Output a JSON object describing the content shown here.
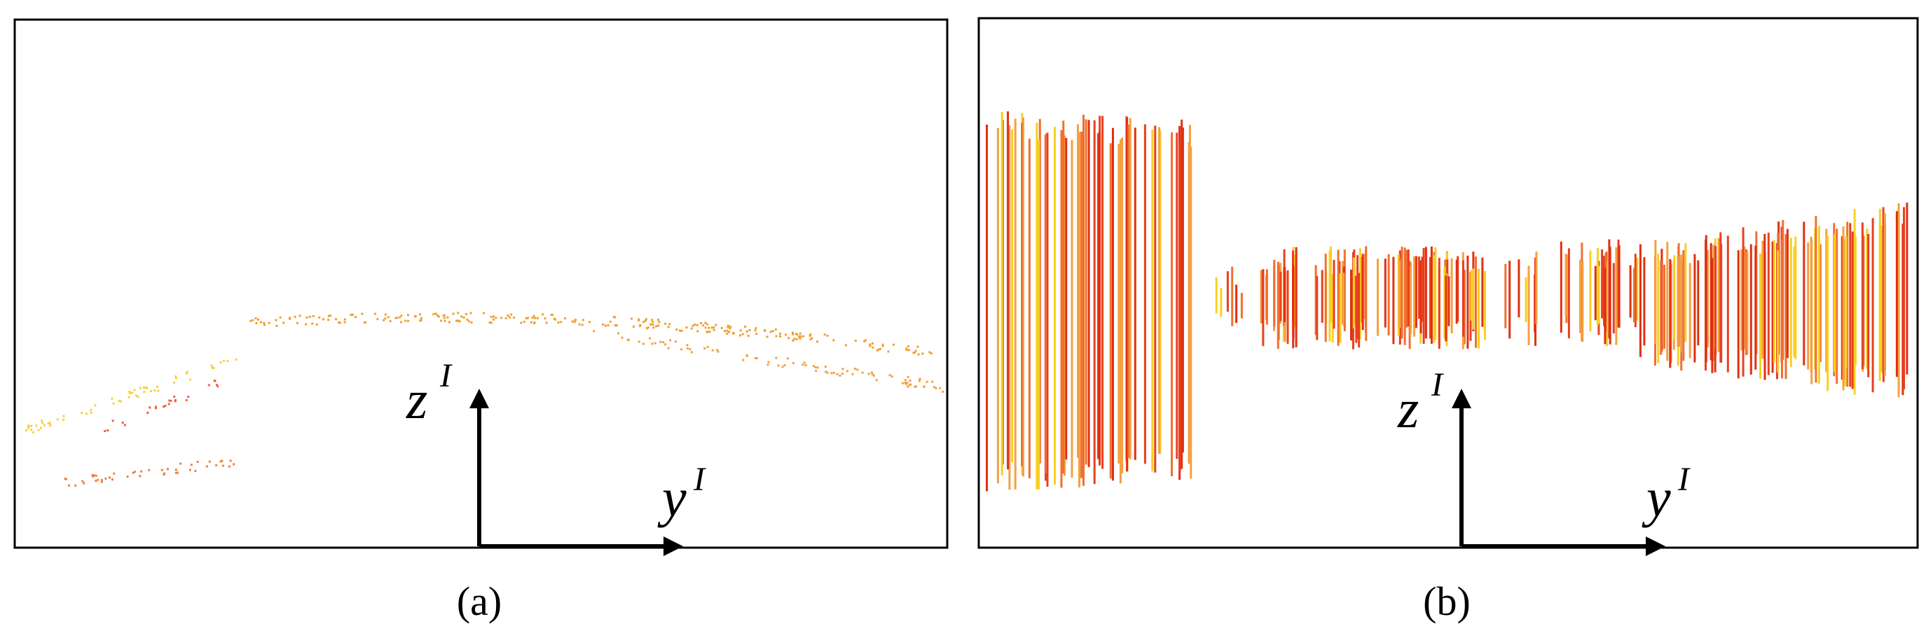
{
  "panels": [
    {
      "caption": "(a)",
      "vertical_axis": "z",
      "vertical_axis_sup": "I",
      "horizontal_axis": "y",
      "horizontal_axis_sup": "I"
    },
    {
      "caption": "(b)",
      "vertical_axis": "z",
      "vertical_axis_sup": "I",
      "horizontal_axis": "y",
      "horizontal_axis_sup": "I"
    }
  ]
}
